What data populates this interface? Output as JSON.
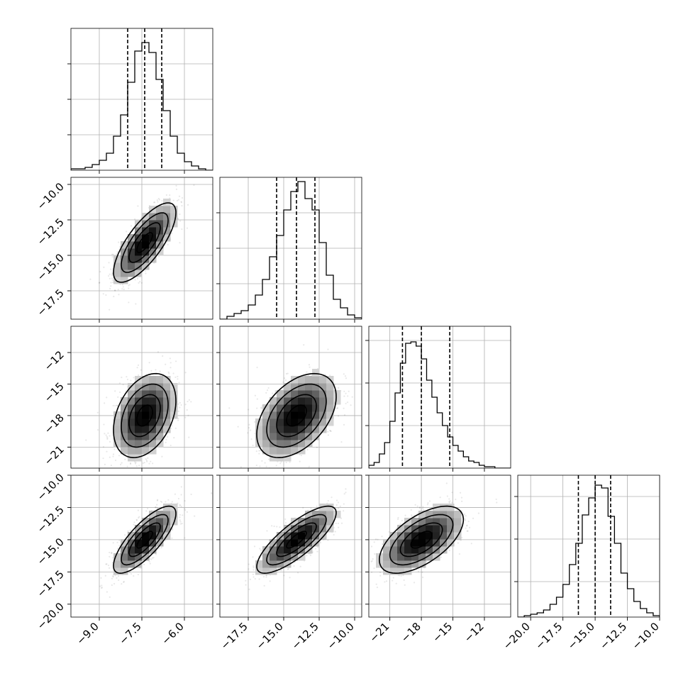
{
  "chart_data": {
    "type": "corner",
    "grid": true,
    "parameters": [
      {
        "range": [
          -10.0,
          -5.0
        ],
        "ticks": [
          -9.0,
          -7.5,
          -6.0
        ],
        "tick_labels": [
          "−9.0",
          "−7.5",
          "−6.0"
        ],
        "mean": -7.4,
        "sd": 0.55,
        "quantiles": [
          -8.0,
          -7.4,
          -6.8
        ]
      },
      {
        "range": [
          -19.5,
          -9.5
        ],
        "ticks": [
          -17.5,
          -15.0,
          -12.5,
          -10.0
        ],
        "tick_labels": [
          "−17.5",
          "−15.0",
          "−12.5",
          "−10.0"
        ],
        "mean": -14.1,
        "sd": 1.4,
        "quantiles": [
          -15.5,
          -14.1,
          -12.8
        ]
      },
      {
        "range": [
          -23.0,
          -9.5
        ],
        "ticks": [
          -21,
          -18,
          -15,
          -12
        ],
        "tick_labels": [
          "−21",
          "−18",
          "−15",
          "−12"
        ],
        "mean": -18.0,
        "sd": 2.0,
        "quantiles": [
          -19.8,
          -18.0,
          -15.3
        ]
      },
      {
        "range": [
          -21.0,
          -10.0
        ],
        "ticks": [
          -20.0,
          -17.5,
          -15.0,
          -12.5,
          -10.0
        ],
        "tick_labels": [
          "−20.0",
          "−17.5",
          "−15.0",
          "−12.5",
          "−10.0"
        ],
        "mean": -15.0,
        "sd": 1.3,
        "quantiles": [
          -16.3,
          -15.0,
          -13.8
        ]
      }
    ],
    "histograms": [
      {
        "param": 0,
        "ymax": 1.0,
        "yticks": [
          0.25,
          0.5,
          0.75
        ],
        "bins": [
          -10.0,
          -9.75,
          -9.5,
          -9.25,
          -9.0,
          -8.75,
          -8.5,
          -8.25,
          -8.0,
          -7.75,
          -7.5,
          -7.25,
          -7.0,
          -6.75,
          -6.5,
          -6.25,
          -6.0,
          -5.75,
          -5.5,
          -5.25,
          -5.0
        ],
        "counts": [
          0.01,
          0.01,
          0.02,
          0.04,
          0.07,
          0.12,
          0.24,
          0.39,
          0.62,
          0.84,
          0.9,
          0.83,
          0.64,
          0.42,
          0.24,
          0.12,
          0.06,
          0.03,
          0.01,
          0.0
        ]
      },
      {
        "param": 1,
        "ymax": 1.0,
        "yticks": [
          0.25,
          0.5,
          0.75
        ],
        "bins": [
          -19.5,
          -19.0,
          -18.5,
          -18.0,
          -17.5,
          -17.0,
          -16.5,
          -16.0,
          -15.5,
          -15.0,
          -14.5,
          -14.0,
          -13.5,
          -13.0,
          -12.5,
          -12.0,
          -11.5,
          -11.0,
          -10.5,
          -10.0,
          -9.5
        ],
        "counts": [
          0.0,
          0.02,
          0.04,
          0.06,
          0.1,
          0.17,
          0.28,
          0.44,
          0.59,
          0.77,
          0.9,
          0.97,
          0.85,
          0.77,
          0.54,
          0.31,
          0.14,
          0.08,
          0.03,
          0.01
        ]
      },
      {
        "param": 2,
        "ymax": 1.0,
        "yticks": [
          0.3,
          0.6,
          0.9
        ],
        "bins": [
          -23.0,
          -22.5,
          -22.0,
          -21.5,
          -21.0,
          -20.5,
          -20.0,
          -19.5,
          -19.0,
          -18.5,
          -18.0,
          -17.5,
          -17.0,
          -16.5,
          -16.0,
          -15.5,
          -15.0,
          -14.5,
          -14.0,
          -13.5,
          -13.0,
          -12.5,
          -12.0,
          -11.5,
          -11.0,
          -10.5,
          -10.0,
          -9.5
        ],
        "counts": [
          0.02,
          0.04,
          0.1,
          0.18,
          0.33,
          0.53,
          0.74,
          0.88,
          0.89,
          0.86,
          0.77,
          0.62,
          0.5,
          0.39,
          0.3,
          0.22,
          0.16,
          0.12,
          0.08,
          0.05,
          0.04,
          0.02,
          0.01,
          0.01,
          0.0,
          0.0,
          0.0
        ]
      },
      {
        "param": 3,
        "ymax": 1.0,
        "yticks": [
          0.25,
          0.55,
          0.85
        ],
        "bins": [
          -21.0,
          -20.5,
          -20.0,
          -19.5,
          -19.0,
          -18.5,
          -18.0,
          -17.5,
          -17.0,
          -16.5,
          -16.0,
          -15.5,
          -15.0,
          -14.5,
          -14.0,
          -13.5,
          -13.0,
          -12.5,
          -12.0,
          -11.5,
          -11.0,
          -10.5,
          -10.0
        ],
        "counts": [
          0.0,
          0.01,
          0.02,
          0.03,
          0.05,
          0.09,
          0.14,
          0.23,
          0.37,
          0.52,
          0.72,
          0.84,
          0.93,
          0.91,
          0.71,
          0.52,
          0.31,
          0.2,
          0.11,
          0.06,
          0.03,
          0.01
        ]
      }
    ],
    "pairs": [
      {
        "x": 0,
        "y": 1,
        "rho": 0.75
      },
      {
        "x": 0,
        "y": 2,
        "rho": 0.35
      },
      {
        "x": 1,
        "y": 2,
        "rho": 0.45
      },
      {
        "x": 0,
        "y": 3,
        "rho": 0.78
      },
      {
        "x": 1,
        "y": 3,
        "rho": 0.8
      },
      {
        "x": 2,
        "y": 3,
        "rho": 0.6
      }
    ],
    "contour_levels_sigma": [
      0.5,
      1.0,
      1.5,
      2.0
    ]
  }
}
